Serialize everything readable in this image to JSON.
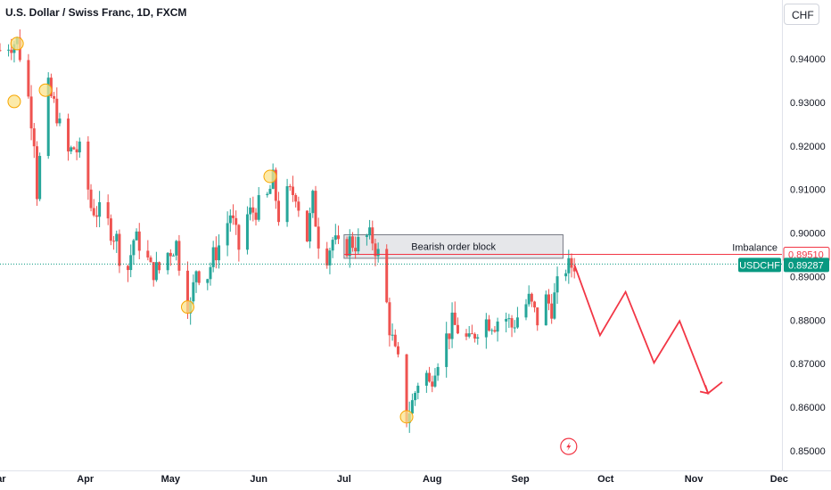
{
  "header": {
    "title": "U.S. Dollar / Swiss Franc, 1D, FXCM",
    "currency": "CHF"
  },
  "colors": {
    "up": "#26a69a",
    "down": "#ef5350",
    "projection": "#f23645",
    "price_line": "#089981",
    "order_block_fill": "#e6e7ea",
    "highlight": "#fbe38c"
  },
  "chart_data": {
    "type": "candlestick",
    "y_ticks": [
      "0.94000",
      "0.93000",
      "0.92000",
      "0.91000",
      "0.90000",
      "0.89000",
      "0.88000",
      "0.87000",
      "0.86000",
      "0.85000"
    ],
    "y_tick_values": [
      0.94,
      0.93,
      0.92,
      0.91,
      0.9,
      0.89,
      0.88,
      0.87,
      0.86,
      0.85
    ],
    "ylim": [
      0.8455,
      0.9535
    ],
    "x_ticks": [
      "Mar",
      "Apr",
      "May",
      "Jun",
      "Jul",
      "Aug",
      "Sep",
      "Oct",
      "Nov",
      "Dec"
    ],
    "x_tick_days": [
      0,
      31,
      61,
      92,
      122,
      153,
      184,
      214,
      245,
      275
    ],
    "xlim": [
      1,
      276
    ],
    "current_price": {
      "label": "USDCHF",
      "value": "0.89287",
      "y": 0.89287
    },
    "imbalance": {
      "label": "Imbalance",
      "value": "0.89510",
      "y": 0.8951
    },
    "order_block": {
      "label": "Bearish order block",
      "x_start": 122,
      "x_end": 199,
      "y_low": 0.8942,
      "y_high": 0.8996
    },
    "projection": {
      "x": [
        203,
        212,
        221,
        231,
        240,
        250,
        255
      ],
      "y": [
        0.8927,
        0.8765,
        0.8865,
        0.8702,
        0.8798,
        0.8632,
        0.8658
      ]
    },
    "highlight_circles": [
      {
        "x": 7,
        "y": 0.9435
      },
      {
        "x": 17,
        "y": 0.9328
      },
      {
        "x": 6,
        "y": 0.9302
      },
      {
        "x": 67,
        "y": 0.883
      },
      {
        "x": 96,
        "y": 0.913
      },
      {
        "x": 144,
        "y": 0.8578
      }
    ],
    "event_marker": {
      "x": 201,
      "y": 0.851
    },
    "keypoints": [
      [
        1,
        0.942
      ],
      [
        4,
        0.9435
      ],
      [
        7,
        0.944
      ],
      [
        10,
        0.9355
      ],
      [
        13,
        0.922
      ],
      [
        14,
        0.9095
      ],
      [
        16,
        0.924
      ],
      [
        18,
        0.933
      ],
      [
        21,
        0.9275
      ],
      [
        24,
        0.9175
      ],
      [
        27,
        0.9195
      ],
      [
        30,
        0.918
      ],
      [
        33,
        0.906
      ],
      [
        36,
        0.9045
      ],
      [
        39,
        0.902
      ],
      [
        42,
        0.8985
      ],
      [
        45,
        0.8885
      ],
      [
        48,
        0.8985
      ],
      [
        51,
        0.8975
      ],
      [
        54,
        0.8915
      ],
      [
        57,
        0.8915
      ],
      [
        60,
        0.8955
      ],
      [
        63,
        0.8975
      ],
      [
        66,
        0.8855
      ],
      [
        68,
        0.883
      ],
      [
        70,
        0.892
      ],
      [
        73,
        0.8885
      ],
      [
        76,
        0.8945
      ],
      [
        79,
        0.8985
      ],
      [
        82,
        0.9045
      ],
      [
        85,
        0.8965
      ],
      [
        88,
        0.904
      ],
      [
        92,
        0.906
      ],
      [
        95,
        0.908
      ],
      [
        97,
        0.912
      ],
      [
        99,
        0.904
      ],
      [
        102,
        0.9085
      ],
      [
        105,
        0.9095
      ],
      [
        107,
        0.9035
      ],
      [
        109,
        0.899
      ],
      [
        111,
        0.9075
      ],
      [
        113,
        0.8985
      ],
      [
        115,
        0.8935
      ],
      [
        118,
        0.8985
      ],
      [
        121,
        0.895
      ],
      [
        124,
        0.898
      ],
      [
        127,
        0.8975
      ],
      [
        130,
        0.899
      ],
      [
        132,
        0.8985
      ],
      [
        134,
        0.895
      ],
      [
        136,
        0.8885
      ],
      [
        138,
        0.8785
      ],
      [
        140,
        0.872
      ],
      [
        142,
        0.868
      ],
      [
        144,
        0.8578
      ],
      [
        146,
        0.861
      ],
      [
        148,
        0.866
      ],
      [
        150,
        0.87
      ],
      [
        152,
        0.865
      ],
      [
        154,
        0.87
      ],
      [
        157,
        0.8745
      ],
      [
        160,
        0.879
      ],
      [
        163,
        0.8775
      ],
      [
        166,
        0.8745
      ],
      [
        169,
        0.8785
      ],
      [
        172,
        0.88
      ],
      [
        175,
        0.8795
      ],
      [
        178,
        0.8815
      ],
      [
        181,
        0.8785
      ],
      [
        184,
        0.882
      ],
      [
        187,
        0.8845
      ],
      [
        190,
        0.88
      ],
      [
        192,
        0.8855
      ],
      [
        195,
        0.883
      ],
      [
        197,
        0.8875
      ],
      [
        199,
        0.8925
      ],
      [
        201,
        0.892
      ],
      [
        203,
        0.893
      ]
    ]
  }
}
